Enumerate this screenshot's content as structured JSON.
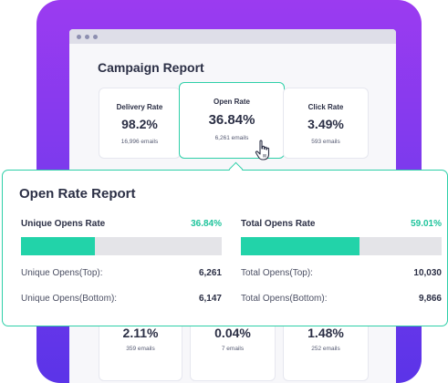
{
  "campaign": {
    "title": "Campaign Report",
    "top_cards": [
      {
        "label": "Delivery Rate",
        "value": "98.2%",
        "sub": "16,996 emails"
      },
      {
        "label": "Open Rate",
        "value": "36.84%",
        "sub": "6,261 emails"
      },
      {
        "label": "Click Rate",
        "value": "3.49%",
        "sub": "593 emails"
      }
    ],
    "bottom_cards": [
      {
        "value": "2.11%",
        "sub": "359 emails"
      },
      {
        "value": "0.04%",
        "sub": "7 emails"
      },
      {
        "value": "1.48%",
        "sub": "252 emails"
      }
    ]
  },
  "report": {
    "title": "Open Rate Report",
    "unique": {
      "label": "Unique Opens Rate",
      "percent": "36.84%",
      "fill": 0.3684,
      "top_label": "Unique Opens(Top):",
      "top_value": "6,261",
      "bottom_label": "Unique Opens(Bottom):",
      "bottom_value": "6,147"
    },
    "total": {
      "label": "Total Opens Rate",
      "percent": "59.01%",
      "fill": 0.5901,
      "top_label": "Total Opens(Top):",
      "top_value": "10,030",
      "bottom_label": "Total Opens(Bottom):",
      "bottom_value": "9,866"
    }
  },
  "colors": {
    "accent": "#22d3a9",
    "frame": "#7c3aed"
  },
  "icons": {
    "cursor": "hand-pointer-icon"
  }
}
